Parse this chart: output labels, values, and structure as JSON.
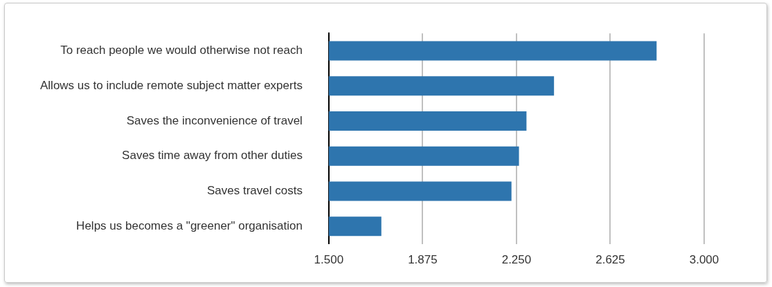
{
  "chart_data": {
    "type": "bar",
    "orientation": "horizontal",
    "categories": [
      "To reach people we would otherwise not reach",
      "Allows us to include remote subject matter experts",
      "Saves the inconvenience of travel",
      "Saves time away from other duties",
      "Saves travel costs",
      "Helps us becomes a \"greener\" organisation"
    ],
    "values": [
      2.81,
      2.4,
      2.29,
      2.26,
      2.23,
      1.71
    ],
    "color": "#2e75ae",
    "xlim": [
      1.5,
      3.0
    ],
    "xticks": [
      {
        "value": 1.5,
        "label": "1.500"
      },
      {
        "value": 1.875,
        "label": "1.875"
      },
      {
        "value": 2.25,
        "label": "2.250"
      },
      {
        "value": 2.625,
        "label": "2.625"
      },
      {
        "value": 3.0,
        "label": "3.000"
      }
    ],
    "grid": "x"
  }
}
